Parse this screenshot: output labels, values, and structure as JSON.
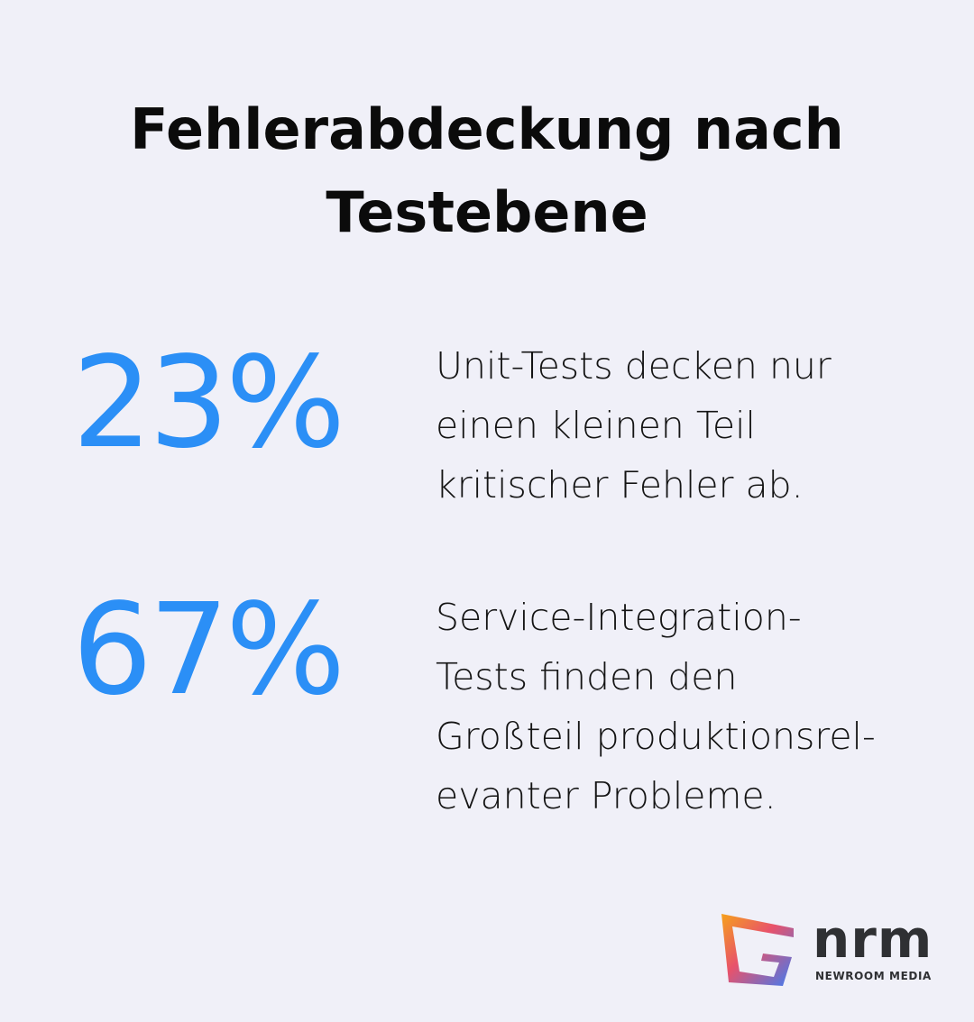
{
  "title": "Fehlerabdeckung nach Testebene",
  "stats": [
    {
      "value": "23%",
      "lines": [
        "Unit-Tests decken nur",
        "einen kleinen Teil",
        "kritischer Fehler ab."
      ]
    },
    {
      "value": "67%",
      "lines": [
        "Service-Integration-",
        "Tests finden den",
        "Großteil produktionsrel-",
        "evanter Probleme."
      ]
    }
  ],
  "logo": {
    "name": "nrm",
    "tagline": "NEWROOM MEDIA"
  }
}
